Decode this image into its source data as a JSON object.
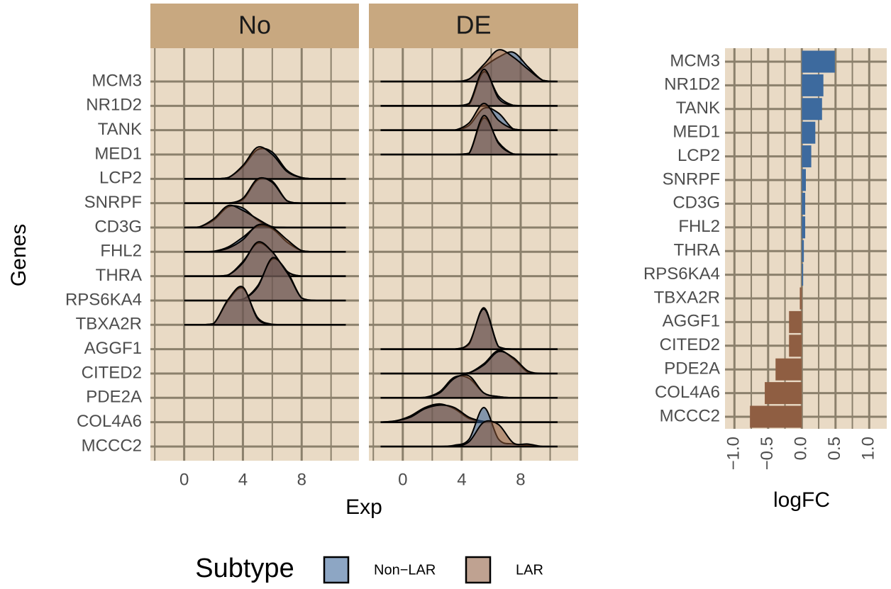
{
  "chart_data": [
    {
      "type": "ridgeline",
      "x_label": "Exp",
      "y_label": "Genes",
      "legend_title": "Subtype",
      "categories": [
        "MCM3",
        "NR1D2",
        "TANK",
        "MED1",
        "LCP2",
        "SNRPF",
        "CD3G",
        "FHL2",
        "THRA",
        "RPS6KA4",
        "TBXA2R",
        "AGGF1",
        "CITED2",
        "PDE2A",
        "COL4A6",
        "MCCC2"
      ],
      "xlim": [
        -2.3,
        11.9
      ],
      "xticks": [
        0,
        4,
        8
      ],
      "minor_xticks": [
        -2,
        2,
        6,
        10
      ],
      "grid": true,
      "series": [
        {
          "name": "Non−LAR",
          "color": "#2f5d93"
        },
        {
          "name": "LAR",
          "color": "#8a5636"
        }
      ],
      "panels": [
        {
          "title": "No",
          "x": [
            0,
            1,
            2,
            3,
            4,
            5,
            6,
            7,
            8,
            9,
            10,
            11
          ],
          "ridges": [
            null,
            null,
            null,
            null,
            [
              [
                0,
                0,
                0,
                0.05,
                0.5,
                1.2,
                1.1,
                0.35,
                0.05,
                0,
                0,
                0
              ],
              [
                0,
                0,
                0,
                0.05,
                0.55,
                1.3,
                1.0,
                0.3,
                0.05,
                0,
                0,
                0
              ]
            ],
            [
              [
                0,
                0,
                0,
                0,
                0.15,
                0.95,
                0.9,
                0.1,
                0,
                0,
                0,
                0
              ],
              [
                0,
                0,
                0,
                0,
                0.2,
                1.0,
                0.85,
                0.1,
                0,
                0,
                0,
                0
              ]
            ],
            [
              [
                0,
                0.02,
                0.3,
                0.85,
                0.8,
                0.3,
                0.02,
                0,
                0,
                0,
                0,
                0
              ],
              [
                0,
                0.02,
                0.35,
                0.9,
                0.7,
                0.35,
                0.03,
                0,
                0,
                0,
                0,
                0
              ]
            ],
            [
              [
                0,
                0,
                0.02,
                0.2,
                0.6,
                1.05,
                0.95,
                0.4,
                0.05,
                0,
                0,
                0
              ],
              [
                0,
                0,
                0.02,
                0.15,
                0.5,
                1.1,
                1.0,
                0.5,
                0.05,
                0,
                0,
                0
              ]
            ],
            [
              [
                0,
                0,
                0,
                0.05,
                0.6,
                1.35,
                1.0,
                0.2,
                0,
                0,
                0,
                0
              ],
              [
                0,
                0,
                0,
                0.05,
                0.55,
                1.4,
                1.0,
                0.2,
                0,
                0,
                0,
                0
              ]
            ],
            [
              [
                0,
                0,
                0,
                0,
                0.05,
                0.6,
                1.7,
                1.2,
                0.1,
                0,
                0,
                0
              ],
              [
                0,
                0,
                0,
                0,
                0.05,
                0.55,
                1.75,
                1.15,
                0.1,
                0,
                0,
                0
              ]
            ],
            [
              [
                0,
                0,
                0.05,
                1.0,
                1.5,
                0.3,
                0.02,
                0,
                0,
                0,
                0,
                0
              ],
              [
                0,
                0,
                0.05,
                1.05,
                1.55,
                0.25,
                0.02,
                0,
                0,
                0,
                0,
                0
              ]
            ],
            null,
            null,
            null,
            null,
            null
          ]
        },
        {
          "title": "DE",
          "x": [
            -1.5,
            -0.5,
            0.5,
            1.5,
            2.5,
            3.5,
            4.5,
            5.5,
            6.5,
            7.5,
            8.5,
            9.5,
            10.5
          ],
          "ridges": [
            [
              [
                0,
                0,
                0,
                0,
                0,
                0,
                0.1,
                0.6,
                1.0,
                1.2,
                0.6,
                0.05,
                0
              ],
              [
                0,
                0,
                0,
                0,
                0,
                0,
                0.1,
                0.7,
                1.3,
                1.0,
                0.5,
                0.05,
                0
              ]
            ],
            [
              [
                0,
                0,
                0,
                0,
                0,
                0,
                0.05,
                1.4,
                0.4,
                0.02,
                0,
                0,
                0
              ],
              [
                0,
                0,
                0,
                0,
                0,
                0,
                0.1,
                1.5,
                0.3,
                0.02,
                0,
                0,
                0
              ]
            ],
            [
              [
                0,
                0,
                0,
                0,
                0,
                0,
                0.2,
                0.9,
                0.7,
                0.05,
                0,
                0,
                0
              ],
              [
                0,
                0,
                0,
                0,
                0,
                0,
                0.3,
                1.1,
                0.4,
                0.05,
                0,
                0,
                0
              ]
            ],
            [
              [
                0,
                0,
                0,
                0,
                0,
                0,
                0.05,
                1.5,
                0.5,
                0.02,
                0,
                0,
                0
              ],
              [
                0,
                0,
                0,
                0,
                0,
                0,
                0.05,
                1.6,
                0.45,
                0.02,
                0,
                0,
                0
              ]
            ],
            null,
            null,
            null,
            null,
            null,
            null,
            null,
            [
              [
                0,
                0,
                0,
                0,
                0,
                0,
                0.2,
                1.7,
                0.1,
                0,
                0,
                0,
                0
              ],
              [
                0,
                0,
                0,
                0,
                0,
                0,
                0.25,
                1.65,
                0.1,
                0,
                0,
                0,
                0
              ]
            ],
            [
              [
                0,
                0,
                0,
                0,
                0,
                0,
                0.03,
                0.4,
                0.95,
                0.6,
                0.05,
                0,
                0
              ],
              [
                0,
                0,
                0,
                0,
                0,
                0,
                0.03,
                0.35,
                0.9,
                0.65,
                0.1,
                0,
                0
              ]
            ],
            [
              [
                0,
                0,
                0,
                0.02,
                0.25,
                0.85,
                0.8,
                0.2,
                0.05,
                0,
                0,
                0,
                0
              ],
              [
                0,
                0,
                0,
                0.02,
                0.2,
                0.8,
                0.9,
                0.2,
                0.05,
                0,
                0,
                0,
                0
              ]
            ],
            [
              [
                0,
                0.05,
                0.25,
                0.6,
                0.75,
                0.55,
                0.15,
                0.03,
                0,
                0,
                0,
                0,
                0
              ],
              [
                0,
                0.05,
                0.2,
                0.55,
                0.7,
                0.6,
                0.2,
                0.03,
                0,
                0,
                0,
                0,
                0
              ]
            ],
            [
              [
                0,
                0,
                0,
                0,
                0,
                0.05,
                0.3,
                1.6,
                0.3,
                0.1,
                0.05,
                0,
                0
              ],
              [
                0,
                0,
                0,
                0,
                0,
                0,
                0.2,
                1.0,
                0.9,
                0.15,
                0.1,
                0,
                0
              ]
            ]
          ]
        }
      ]
    },
    {
      "type": "barh",
      "x_label": "logFC",
      "categories": [
        "MCM3",
        "NR1D2",
        "TANK",
        "MED1",
        "LCP2",
        "SNRPF",
        "CD3G",
        "FHL2",
        "THRA",
        "RPS6KA4",
        "TBXA2R",
        "AGGF1",
        "CITED2",
        "PDE2A",
        "COL4A6",
        "MCCC2"
      ],
      "values": [
        0.49,
        0.32,
        0.3,
        0.2,
        0.14,
        0.06,
        0.05,
        0.05,
        0.03,
        0.02,
        -0.03,
        -0.19,
        -0.19,
        -0.39,
        -0.55,
        -0.77
      ],
      "colors": [
        "#3d6a9e",
        "#3d6a9e",
        "#3d6a9e",
        "#3d6a9e",
        "#3d6a9e",
        "#3d6a9e",
        "#3d6a9e",
        "#3d6a9e",
        "#3d6a9e",
        "#3d6a9e",
        "#8f5e42",
        "#8f5e42",
        "#8f5e42",
        "#8f5e42",
        "#8f5e42",
        "#8f5e42"
      ],
      "xlim": [
        -1.14,
        1.26
      ],
      "xticks": [
        {
          "value": -1,
          "label": "−1.0"
        },
        {
          "value": -0.5,
          "label": "−0.5"
        },
        {
          "value": 0,
          "label": "0.0"
        },
        {
          "value": 0.5,
          "label": "0.5"
        },
        {
          "value": 1,
          "label": "1.0"
        }
      ],
      "minor_xticks": [
        -0.75,
        -0.25,
        0.25,
        0.75
      ],
      "grid": true
    }
  ]
}
